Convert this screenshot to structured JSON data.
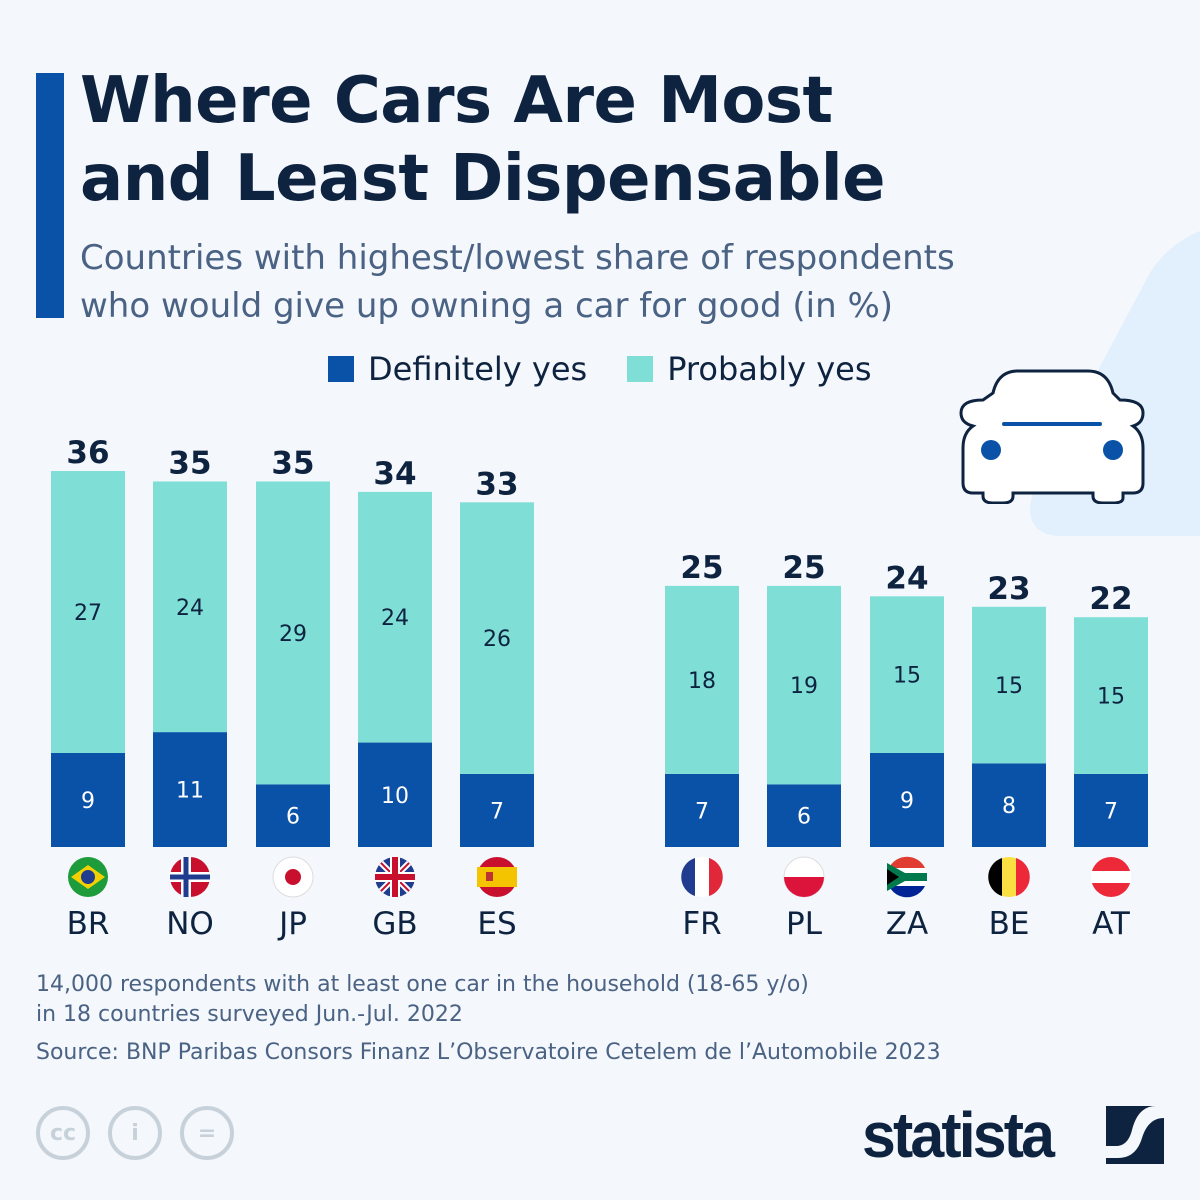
{
  "title_lines": [
    "Where Cars Are Most",
    "and Least Dispensable"
  ],
  "subtitle_lines": [
    "Countries with highest/lowest share of respondents",
    "who would give up owning a car for good (in %)"
  ],
  "colors": {
    "definitely": "#0a52a8",
    "probably": "#7fdfd6",
    "accent": "#0a52a8",
    "text": "#0e2340"
  },
  "chart_data": {
    "type": "bar",
    "stacked": true,
    "categories": [
      "BR",
      "NO",
      "JP",
      "GB",
      "ES",
      "FR",
      "PL",
      "ZA",
      "BE",
      "AT"
    ],
    "groups": [
      [
        "BR",
        "NO",
        "JP",
        "GB",
        "ES"
      ],
      [
        "FR",
        "PL",
        "ZA",
        "BE",
        "AT"
      ]
    ],
    "series": [
      {
        "name": "Definitely yes",
        "values": [
          9,
          11,
          6,
          10,
          7,
          7,
          6,
          9,
          8,
          7
        ]
      },
      {
        "name": "Probably yes",
        "values": [
          27,
          24,
          29,
          24,
          26,
          18,
          19,
          15,
          15,
          15
        ]
      }
    ],
    "totals": [
      36,
      35,
      35,
      34,
      33,
      25,
      25,
      24,
      23,
      22
    ],
    "legend_placement": "top",
    "grid": false,
    "ylim": [
      0,
      36
    ]
  },
  "footer": {
    "note_lines": [
      "14,000 respondents with at least one car in the household (18-65 y/o)",
      "in 18 countries surveyed Jun.-Jul. 2022"
    ],
    "source": "Source: BNP Paribas Consors Finanz L’Observatoire Cetelem de l’Automobile 2023",
    "logo": "statista"
  },
  "icons": [
    "car-icon",
    "cc-icon",
    "attribution-icon",
    "no-derivatives-icon"
  ]
}
